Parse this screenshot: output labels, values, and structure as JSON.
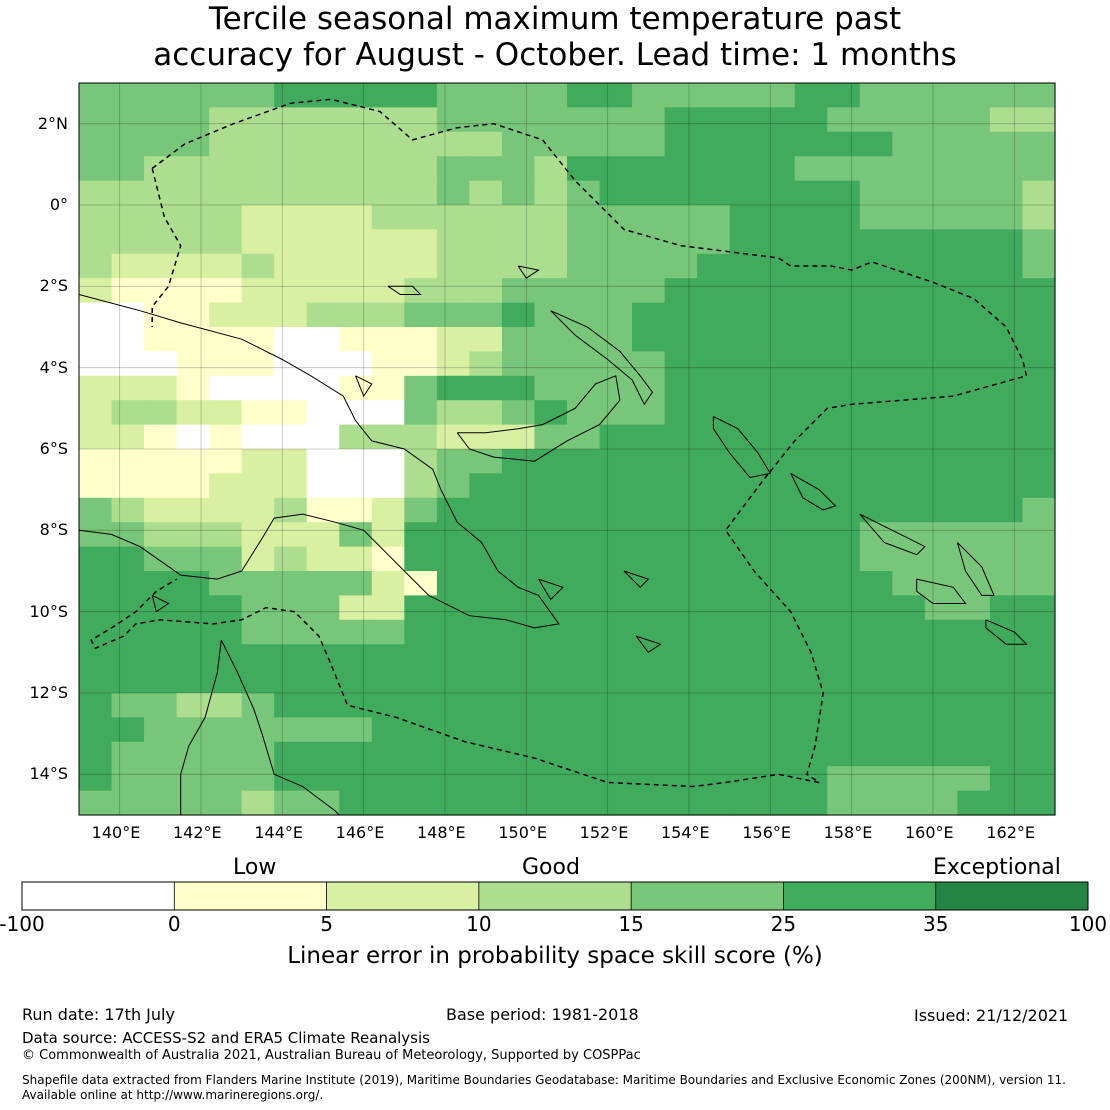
{
  "title": {
    "line1": "Tercile seasonal maximum temperature past",
    "line2": "accuracy for August - October. Lead time: 1 months"
  },
  "map": {
    "lon_labels": [
      "140°E",
      "142°E",
      "144°E",
      "146°E",
      "148°E",
      "150°E",
      "152°E",
      "154°E",
      "156°E",
      "158°E",
      "160°E",
      "162°E"
    ],
    "lat_labels": [
      "2°N",
      "0°",
      "2°S",
      "4°S",
      "6°S",
      "8°S",
      "10°S",
      "12°S",
      "14°S"
    ],
    "lon_range": [
      139,
      163
    ],
    "lat_range": [
      -15,
      3
    ]
  },
  "colorbar": {
    "category_labels": [
      "Low",
      "Good",
      "Exceptional"
    ],
    "ticks": [
      "-100",
      "0",
      "5",
      "10",
      "15",
      "25",
      "35",
      "100"
    ],
    "colors": [
      "#ffffff",
      "#ffffcc",
      "#d9f0a3",
      "#addd8e",
      "#78c679",
      "#41ab5d",
      "#238443"
    ],
    "title": "Linear error in probability space skill score (%)"
  },
  "footer": {
    "run_date": "Run date: 17th July",
    "base_period": "Base period: 1981-2018",
    "issued": "Issued: 21/12/2021",
    "data_source": "Data source: ACCESS-S2 and ERA5 Climate Reanalysis",
    "copyright": "© Commonwealth of Australia 2021, Australian Bureau of Meteorology, Supported by COSPPac",
    "shapefile_line1": "Shapefile data extracted from Flanders Marine Institute (2019), Maritime Boundaries Geodatabase: Maritime Boundaries and Exclusive Economic Zones (200NM), version 11.",
    "shapefile_line2": "Available online at http://www.marineregions.org/."
  }
}
